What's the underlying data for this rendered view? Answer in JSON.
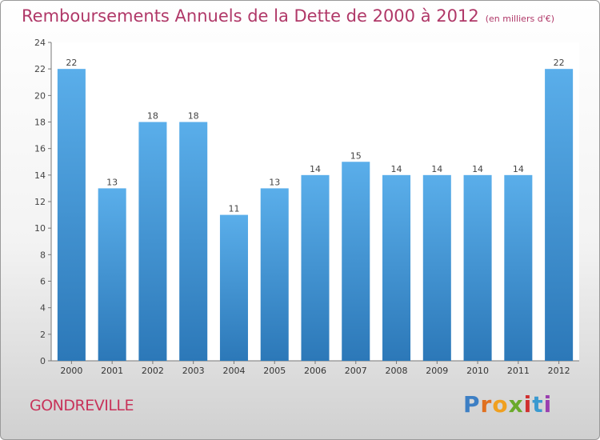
{
  "chart_data": {
    "type": "bar",
    "title": "Remboursements Annuels de la Dette de 2000 à 2012",
    "subtitle": "(en milliers d'€)",
    "categories": [
      "2000",
      "2001",
      "2002",
      "2003",
      "2004",
      "2005",
      "2006",
      "2007",
      "2008",
      "2009",
      "2010",
      "2011",
      "2012"
    ],
    "values": [
      22,
      13,
      18,
      18,
      11,
      13,
      14,
      15,
      14,
      14,
      14,
      14,
      22
    ],
    "ylim": [
      0,
      24
    ],
    "yticks": [
      0,
      2,
      4,
      6,
      8,
      10,
      12,
      14,
      16,
      18,
      20,
      22,
      24
    ],
    "grid": false,
    "bar_color": "#3f95d8"
  },
  "commune": "GONDREVILLE",
  "brand": {
    "letters": [
      "P",
      "r",
      "o",
      "x",
      "i",
      "t",
      "i"
    ],
    "colors": [
      "#3d7fc4",
      "#e07020",
      "#f0a020",
      "#6aaa2a",
      "#d03030",
      "#3a9ad0",
      "#9a3fb0"
    ]
  }
}
